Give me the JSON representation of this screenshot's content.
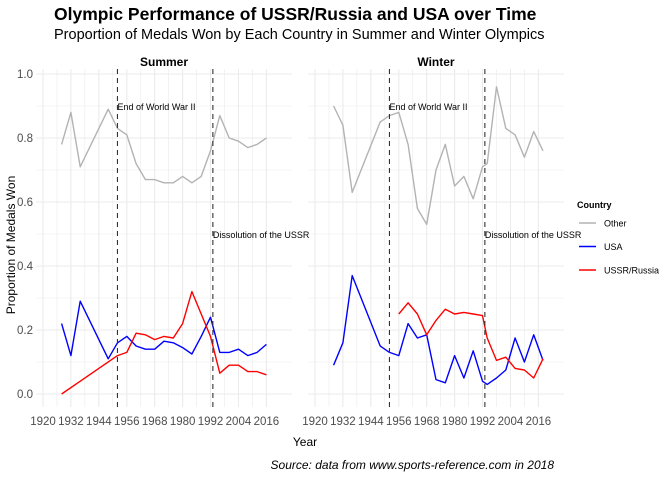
{
  "title": "Olympic Performance of USSR/Russia and USA over Time",
  "subtitle": "Proportion of Medals Won by Each Country in Summer and Winter Olympics",
  "caption": "Source: data from www.sports-reference.com in 2018",
  "chart_data": {
    "type": "line",
    "xlabel": "Year",
    "ylabel": "Proportion of Medals Won",
    "xlim": [
      1920,
      2024
    ],
    "ylim": [
      0,
      1
    ],
    "x_ticks": [
      1920,
      1932,
      1944,
      1956,
      1968,
      1980,
      1992,
      2004,
      2016
    ],
    "y_ticks": [
      0.0,
      0.2,
      0.4,
      0.6,
      0.8,
      1.0
    ],
    "y_tick_labels": [
      "0.0",
      "0.2",
      "0.4",
      "0.6",
      "0.8",
      "1.0"
    ],
    "grid": true,
    "legend": {
      "title": "Country",
      "position": "right",
      "entries": [
        "Other",
        "USA",
        "USSR/Russia"
      ]
    },
    "colors": {
      "Other": "#b3b3b3",
      "USA": "#0000ff",
      "USSR/Russia": "#ff0000",
      "grid": "#ebebeb",
      "vline": "#333333"
    },
    "panels": [
      {
        "name": "Summer",
        "annotations": [
          {
            "label": "End of World War II",
            "x": 1952,
            "y": 0.9
          },
          {
            "label": "Dissolution of the USSR",
            "x": 1993,
            "y": 0.5
          }
        ],
        "vlines": [
          1952,
          1993
        ],
        "series": [
          {
            "name": "Other",
            "x": [
              1928,
              1932,
              1936,
              1948,
              1952,
              1956,
              1960,
              1964,
              1968,
              1972,
              1976,
              1980,
              1984,
              1988,
              1992,
              1996,
              2000,
              2004,
              2008,
              2012,
              2016
            ],
            "y": [
              0.78,
              0.88,
              0.71,
              0.89,
              0.83,
              0.81,
              0.72,
              0.67,
              0.67,
              0.66,
              0.66,
              0.68,
              0.66,
              0.68,
              0.76,
              0.87,
              0.8,
              0.79,
              0.77,
              0.78,
              0.8
            ]
          },
          {
            "name": "USA",
            "x": [
              1928,
              1932,
              1936,
              1948,
              1952,
              1956,
              1960,
              1964,
              1968,
              1972,
              1976,
              1980,
              1984,
              1988,
              1992,
              1996,
              2000,
              2004,
              2008,
              2012,
              2016
            ],
            "y": [
              0.22,
              0.12,
              0.29,
              0.11,
              0.16,
              0.18,
              0.15,
              0.14,
              0.14,
              0.165,
              0.16,
              0.145,
              0.125,
              0.18,
              0.24,
              0.13,
              0.13,
              0.14,
              0.12,
              0.13,
              0.155
            ]
          },
          {
            "name": "USSR/Russia",
            "x": [
              1928,
              1952,
              1956,
              1960,
              1964,
              1968,
              1972,
              1976,
              1980,
              1984,
              1988,
              1992,
              1996,
              2000,
              2004,
              2008,
              2012,
              2016
            ],
            "y": [
              0.0,
              0.12,
              0.13,
              0.19,
              0.185,
              0.17,
              0.18,
              0.175,
              0.22,
              0.32,
              0.25,
              0.18,
              0.065,
              0.09,
              0.09,
              0.07,
              0.07,
              0.06
            ]
          }
        ]
      },
      {
        "name": "Winter",
        "annotations": [
          {
            "label": "End of World War II",
            "x": 1952,
            "y": 0.9
          },
          {
            "label": "Dissolution of the USSR",
            "x": 1993,
            "y": 0.5
          }
        ],
        "vlines": [
          1952,
          1993
        ],
        "series": [
          {
            "name": "Other",
            "x": [
              1928,
              1932,
              1936,
              1948,
              1952,
              1956,
              1960,
              1964,
              1968,
              1972,
              1976,
              1980,
              1984,
              1988,
              1992,
              1994,
              1998,
              2002,
              2006,
              2010,
              2014,
              2018
            ],
            "y": [
              0.9,
              0.84,
              0.63,
              0.85,
              0.87,
              0.88,
              0.78,
              0.58,
              0.53,
              0.7,
              0.78,
              0.65,
              0.68,
              0.61,
              0.71,
              0.72,
              0.96,
              0.83,
              0.81,
              0.74,
              0.82,
              0.76
            ]
          },
          {
            "name": "USA",
            "x": [
              1928,
              1932,
              1936,
              1948,
              1952,
              1956,
              1960,
              1964,
              1968,
              1972,
              1976,
              1980,
              1984,
              1988,
              1992,
              1994,
              1998,
              2002,
              2006,
              2010,
              2014,
              2018
            ],
            "y": [
              0.09,
              0.16,
              0.37,
              0.15,
              0.13,
              0.12,
              0.22,
              0.175,
              0.185,
              0.045,
              0.035,
              0.12,
              0.05,
              0.135,
              0.04,
              0.03,
              0.05,
              0.075,
              0.175,
              0.1,
              0.185,
              0.105
            ]
          },
          {
            "name": "USSR/Russia",
            "x": [
              1956,
              1960,
              1964,
              1968,
              1972,
              1976,
              1980,
              1984,
              1988,
              1992,
              1994,
              1998,
              2002,
              2006,
              2010,
              2014,
              2018
            ],
            "y": [
              0.25,
              0.285,
              0.25,
              0.185,
              0.23,
              0.265,
              0.25,
              0.255,
              0.25,
              0.245,
              0.175,
              0.105,
              0.115,
              0.08,
              0.075,
              0.05,
              0.11
            ]
          }
        ]
      }
    ]
  }
}
